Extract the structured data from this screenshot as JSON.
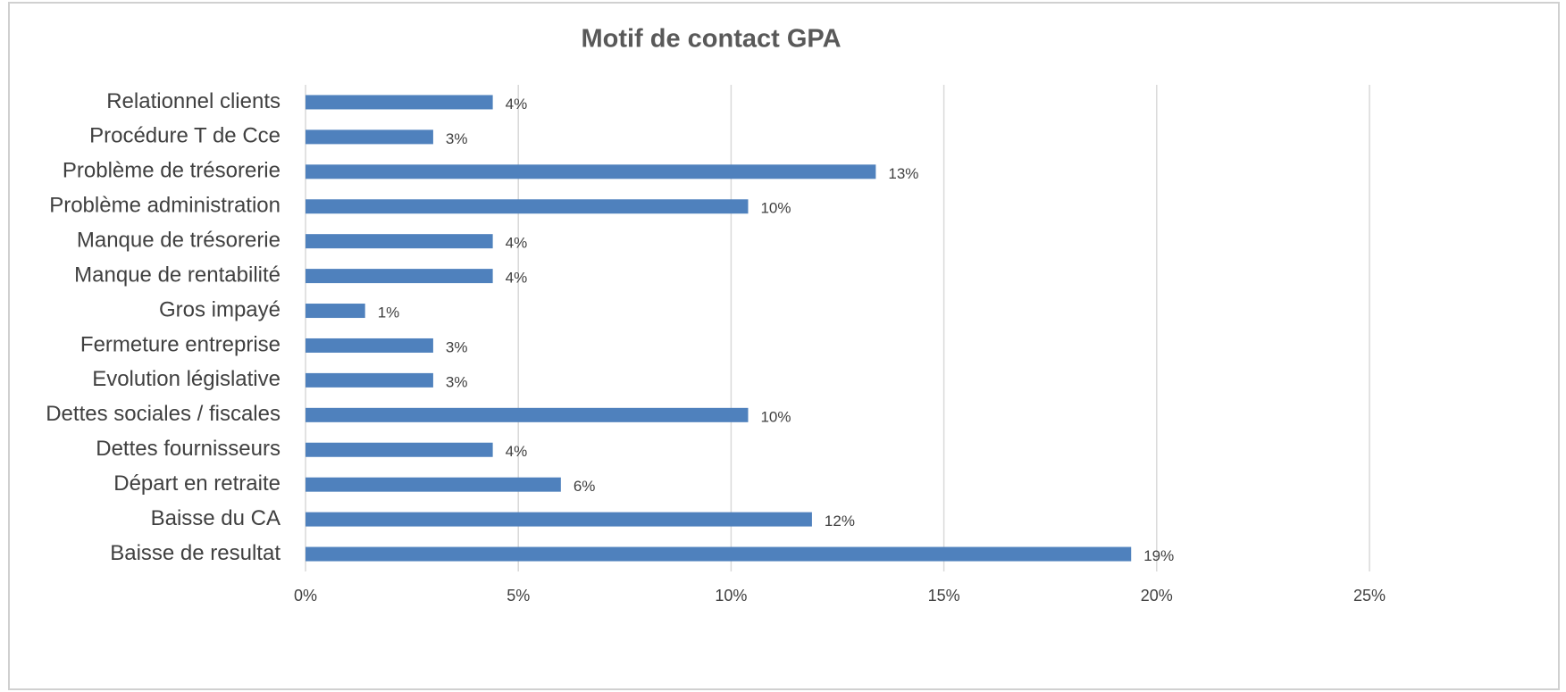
{
  "chart_data": {
    "type": "bar",
    "orientation": "horizontal",
    "title": "Motif de contact GPA",
    "categories": [
      "Relationnel clients",
      "Procédure T de Cce",
      "Problème de trésorerie",
      "Problème administration",
      "Manque de trésorerie",
      "Manque de rentabilité",
      "Gros impayé",
      "Fermeture entreprise",
      "Evolution législative",
      "Dettes sociales / fiscales",
      "Dettes fournisseurs",
      "Départ en retraite",
      "Baisse du CA",
      "Baisse de resultat"
    ],
    "values": [
      4.4,
      3.0,
      13.4,
      10.4,
      4.4,
      4.4,
      1.4,
      3.0,
      3.0,
      10.4,
      4.4,
      6.0,
      11.9,
      19.4
    ],
    "value_labels": [
      "4%",
      "3%",
      "13%",
      "10%",
      "4%",
      "4%",
      "1%",
      "3%",
      "3%",
      "10%",
      "4%",
      "6%",
      "12%",
      "19%"
    ],
    "color": "#4f81bd",
    "xlim": [
      0,
      25
    ],
    "xticks": [
      {
        "value": 0,
        "label": "0%"
      },
      {
        "value": 5,
        "label": "5%"
      },
      {
        "value": 10,
        "label": "10%"
      },
      {
        "value": 15,
        "label": "15%"
      },
      {
        "value": 20,
        "label": "20%"
      },
      {
        "value": 25,
        "label": "25%"
      }
    ],
    "grid": true
  }
}
